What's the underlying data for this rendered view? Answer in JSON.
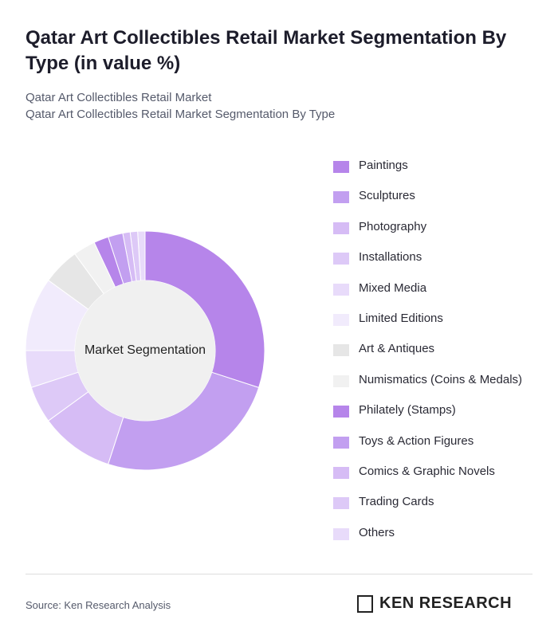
{
  "chart_data": {
    "type": "donut",
    "title": "Qatar Art Collectibles Retail Market Segmentation By Type (in value %)",
    "subtitles": [
      "Qatar Art Collectibles Retail Market",
      "Qatar Art Collectibles Retail Market Segmentation By Type"
    ],
    "center_label": "Market Segmentation",
    "categories": [
      "Paintings",
      "Sculptures",
      "Photography",
      "Installations",
      "Mixed Media",
      "Limited Editions",
      "Art & Antiques",
      "Numismatics (Coins & Medals)",
      "Philately (Stamps)",
      "Toys & Action Figures",
      "Comics & Graphic Novels",
      "Trading Cards",
      "Others"
    ],
    "values": [
      30,
      25,
      10,
      5,
      5,
      10,
      5,
      3,
      2,
      2,
      1,
      1,
      1
    ],
    "colors": [
      "#b685ea",
      "#c29ff0",
      "#d6bcf5",
      "#ddc9f7",
      "#e8dbfa",
      "#f1ebfc",
      "#e6e6e6",
      "#f1f1f1",
      "#b685ea",
      "#c29ff0",
      "#d6bcf5",
      "#ddc9f7",
      "#e8dbfa"
    ]
  },
  "footer": {
    "source": "Source: Ken Research Analysis",
    "brand": "KEN RESEARCH"
  }
}
